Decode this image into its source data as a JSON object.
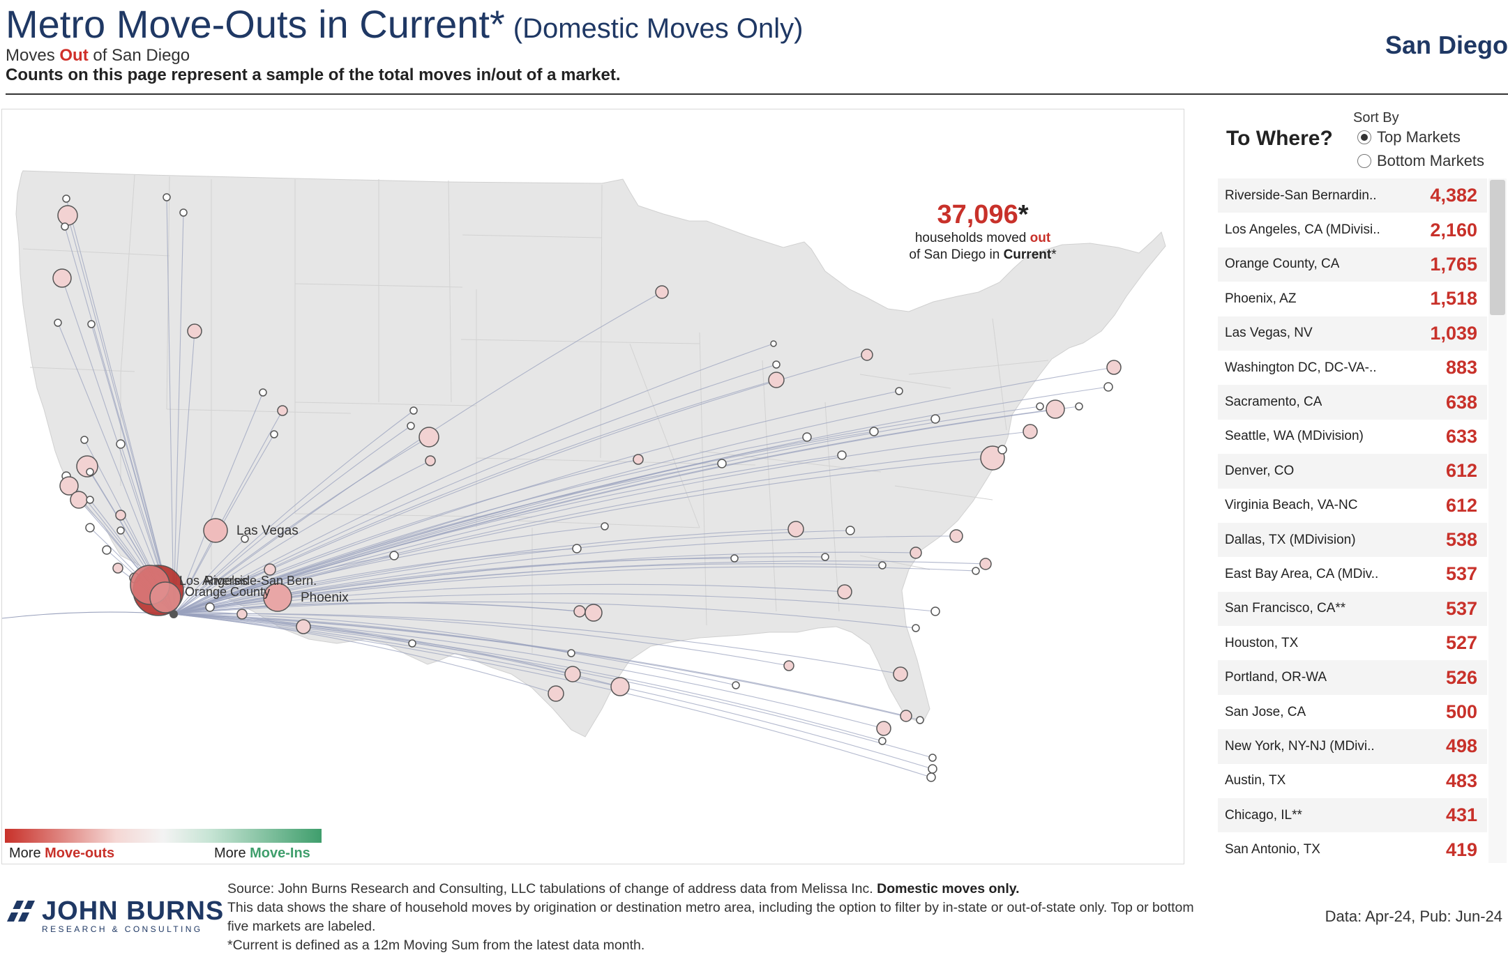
{
  "header": {
    "title_main": "Metro Move-Outs in Current*",
    "title_paren": "(Domestic Moves Only)",
    "subtitle_prefix": "Moves ",
    "subtitle_out": "Out",
    "subtitle_suffix": " of San Diego",
    "note": "Counts on this page represent a sample of the total moves in/out of a market.",
    "metro": "San Diego"
  },
  "callout": {
    "number": "37,096",
    "star": "*",
    "line1_prefix": "households moved ",
    "line1_out": "out",
    "line2_prefix": "of San Diego in ",
    "line2_bold": "Current",
    "line2_suffix": "*"
  },
  "map": {
    "labels": {
      "las_vegas": "Las Vegas",
      "phoenix": "Phoenix",
      "la_overlap": "Los Angeles",
      "riverside": "Riverside-San Bern.",
      "orange": "Orange County"
    },
    "colors": {
      "origin": "#b32a25",
      "dest_fill": "#f2d2d2",
      "dest_stroke": "#555555",
      "line": "#9aa2bd"
    }
  },
  "legend": {
    "left_prefix": "More ",
    "left_strong": "Move-outs",
    "right_prefix": "More ",
    "right_strong": "Move-Ins"
  },
  "panel": {
    "heading": "To Where?",
    "sort_label": "Sort By",
    "options": [
      {
        "label": "Top Markets",
        "selected": true
      },
      {
        "label": "Bottom Markets",
        "selected": false
      }
    ],
    "rows": [
      {
        "name": "Riverside-San Bernardin..",
        "value": "4,382"
      },
      {
        "name": "Los Angeles, CA (MDivisi..",
        "value": "2,160"
      },
      {
        "name": "Orange County, CA",
        "value": "1,765"
      },
      {
        "name": "Phoenix, AZ",
        "value": "1,518"
      },
      {
        "name": "Las Vegas, NV",
        "value": "1,039"
      },
      {
        "name": "Washington DC, DC-VA-..",
        "value": "883"
      },
      {
        "name": "Sacramento, CA",
        "value": "638"
      },
      {
        "name": "Seattle, WA (MDivision)",
        "value": "633"
      },
      {
        "name": "Denver, CO",
        "value": "612"
      },
      {
        "name": "Virginia Beach, VA-NC",
        "value": "612"
      },
      {
        "name": "Dallas, TX (MDivision)",
        "value": "538"
      },
      {
        "name": "East Bay Area, CA (MDiv..",
        "value": "537"
      },
      {
        "name": "San Francisco, CA**",
        "value": "537"
      },
      {
        "name": "Houston, TX",
        "value": "527"
      },
      {
        "name": "Portland, OR-WA",
        "value": "526"
      },
      {
        "name": "San Jose, CA",
        "value": "500"
      },
      {
        "name": "New York, NY-NJ (MDivi..",
        "value": "498"
      },
      {
        "name": "Austin, TX",
        "value": "483"
      },
      {
        "name": "Chicago, IL**",
        "value": "431"
      },
      {
        "name": "San Antonio, TX",
        "value": "419"
      }
    ]
  },
  "footer": {
    "logo_name": "JOHN BURNS",
    "logo_tag": "RESEARCH & CONSULTING",
    "source_prefix": "Source: John Burns Research and Consulting, LLC tabulations of change of address data from Melissa Inc. ",
    "source_bold": "Domestic moves only.",
    "line2": "This data shows the share of household moves by origination or destination metro area, including the option to filter by in-state or out-of-state only. Top or bottom five markets are labeled.",
    "line3": "*Current is defined as a 12m Moving Sum from the latest data month.",
    "pub": "Data: Apr-24, Pub: Jun-24"
  }
}
